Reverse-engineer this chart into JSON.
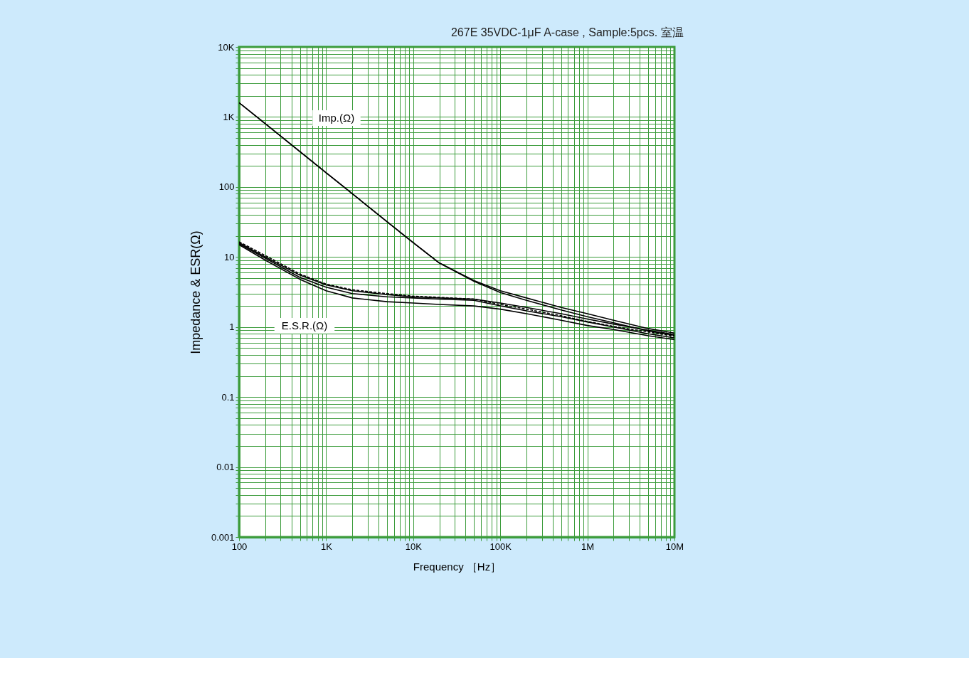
{
  "chart_data": {
    "type": "line",
    "title": "267E 35VDC-1μF A-case , Sample:5pcs. 室温",
    "xlabel": "Frequency ［Hz］",
    "ylabel": "Impedance  &  ESR(Ω)",
    "log": "xy",
    "grid": true,
    "legend": false,
    "marker": "none",
    "x": [
      100,
      200,
      500,
      1000,
      2000,
      5000,
      10000,
      20000,
      50000,
      100000,
      200000,
      500000,
      1000000,
      2000000,
      5000000,
      10000000
    ],
    "series": [
      {
        "color": "#000000",
        "line_style": "solid",
        "values": [
          1600,
          800,
          320,
          160,
          80,
          32,
          16,
          8.2,
          4.6,
          3.3,
          2.6,
          1.9,
          1.55,
          1.25,
          0.95,
          0.82
        ]
      },
      {
        "color": "#000000",
        "line_style": "solid",
        "values": [
          1600,
          800,
          320,
          160,
          80,
          32,
          16,
          8.2,
          4.5,
          3.1,
          2.4,
          1.75,
          1.4,
          1.15,
          0.88,
          0.76
        ]
      },
      {
        "color": "#000000",
        "line_style": "solid",
        "values": [
          16,
          10,
          5.5,
          4.0,
          3.3,
          2.9,
          2.7,
          2.6,
          2.5,
          2.2,
          1.9,
          1.55,
          1.3,
          1.1,
          0.9,
          0.78
        ]
      },
      {
        "color": "#000000",
        "line_style": "dashed",
        "values": [
          16.5,
          10.5,
          5.7,
          4.1,
          3.4,
          3.0,
          2.75,
          2.65,
          2.5,
          2.1,
          1.8,
          1.45,
          1.2,
          1.02,
          0.85,
          0.74
        ]
      },
      {
        "color": "#000000",
        "line_style": "solid",
        "values": [
          15.5,
          9.6,
          5.1,
          3.7,
          3.0,
          2.7,
          2.6,
          2.5,
          2.4,
          2.0,
          1.7,
          1.4,
          1.18,
          1.0,
          0.8,
          0.7
        ]
      },
      {
        "color": "#000000",
        "line_style": "solid",
        "values": [
          15,
          9,
          4.8,
          3.3,
          2.6,
          2.3,
          2.2,
          2.1,
          2.0,
          1.8,
          1.55,
          1.25,
          1.05,
          0.92,
          0.75,
          0.66
        ]
      }
    ],
    "annotations": [
      "Imp.(Ω)",
      "E.S.R.(Ω)"
    ],
    "xlim": [
      100,
      10000000
    ],
    "ylim": [
      0.001,
      10000
    ],
    "xticks": [
      {
        "value": 100,
        "label": "100"
      },
      {
        "value": 200,
        "label": null
      },
      {
        "value": 300,
        "label": null
      },
      {
        "value": 400,
        "label": null
      },
      {
        "value": 500,
        "label": null
      },
      {
        "value": 600,
        "label": null
      },
      {
        "value": 700,
        "label": null
      },
      {
        "value": 800,
        "label": null
      },
      {
        "value": 900,
        "label": null
      },
      {
        "value": 1000,
        "label": "1K"
      },
      {
        "value": 2000,
        "label": null
      },
      {
        "value": 3000,
        "label": null
      },
      {
        "value": 4000,
        "label": null
      },
      {
        "value": 5000,
        "label": null
      },
      {
        "value": 6000,
        "label": null
      },
      {
        "value": 7000,
        "label": null
      },
      {
        "value": 8000,
        "label": null
      },
      {
        "value": 9000,
        "label": null
      },
      {
        "value": 10000,
        "label": "10K"
      },
      {
        "value": 20000,
        "label": null
      },
      {
        "value": 30000,
        "label": null
      },
      {
        "value": 40000,
        "label": null
      },
      {
        "value": 50000,
        "label": null
      },
      {
        "value": 60000,
        "label": null
      },
      {
        "value": 70000,
        "label": null
      },
      {
        "value": 80000,
        "label": null
      },
      {
        "value": 90000,
        "label": null
      },
      {
        "value": 100000,
        "label": "100K"
      },
      {
        "value": 200000,
        "label": null
      },
      {
        "value": 300000,
        "label": null
      },
      {
        "value": 400000,
        "label": null
      },
      {
        "value": 500000,
        "label": null
      },
      {
        "value": 600000,
        "label": null
      },
      {
        "value": 700000,
        "label": null
      },
      {
        "value": 800000,
        "label": null
      },
      {
        "value": 900000,
        "label": null
      },
      {
        "value": 1000000,
        "label": "1M"
      },
      {
        "value": 2000000,
        "label": null
      },
      {
        "value": 3000000,
        "label": null
      },
      {
        "value": 4000000,
        "label": null
      },
      {
        "value": 5000000,
        "label": null
      },
      {
        "value": 6000000,
        "label": null
      },
      {
        "value": 7000000,
        "label": null
      },
      {
        "value": 8000000,
        "label": null
      },
      {
        "value": 9000000,
        "label": null
      },
      {
        "value": 10000000,
        "label": "10M"
      }
    ],
    "yticks": [
      {
        "value": 0.001,
        "label": "0.001"
      },
      {
        "value": 0.002,
        "label": null
      },
      {
        "value": 0.003,
        "label": null
      },
      {
        "value": 0.004,
        "label": null
      },
      {
        "value": 0.005,
        "label": null
      },
      {
        "value": 0.006,
        "label": null
      },
      {
        "value": 0.007,
        "label": null
      },
      {
        "value": 0.008,
        "label": null
      },
      {
        "value": 0.009,
        "label": null
      },
      {
        "value": 0.01,
        "label": "0.01"
      },
      {
        "value": 0.02,
        "label": null
      },
      {
        "value": 0.03,
        "label": null
      },
      {
        "value": 0.04,
        "label": null
      },
      {
        "value": 0.05,
        "label": null
      },
      {
        "value": 0.06,
        "label": null
      },
      {
        "value": 0.07,
        "label": null
      },
      {
        "value": 0.08,
        "label": null
      },
      {
        "value": 0.09,
        "label": null
      },
      {
        "value": 0.1,
        "label": "0.1"
      },
      {
        "value": 0.2,
        "label": null
      },
      {
        "value": 0.3,
        "label": null
      },
      {
        "value": 0.4,
        "label": null
      },
      {
        "value": 0.5,
        "label": null
      },
      {
        "value": 0.6,
        "label": null
      },
      {
        "value": 0.7,
        "label": null
      },
      {
        "value": 0.8,
        "label": null
      },
      {
        "value": 0.9,
        "label": null
      },
      {
        "value": 1,
        "label": "1"
      },
      {
        "value": 2,
        "label": null
      },
      {
        "value": 3,
        "label": null
      },
      {
        "value": 4,
        "label": null
      },
      {
        "value": 5,
        "label": null
      },
      {
        "value": 6,
        "label": null
      },
      {
        "value": 7,
        "label": null
      },
      {
        "value": 8,
        "label": null
      },
      {
        "value": 9,
        "label": null
      },
      {
        "value": 10,
        "label": "10"
      },
      {
        "value": 20,
        "label": null
      },
      {
        "value": 30,
        "label": null
      },
      {
        "value": 40,
        "label": null
      },
      {
        "value": 50,
        "label": null
      },
      {
        "value": 60,
        "label": null
      },
      {
        "value": 70,
        "label": null
      },
      {
        "value": 80,
        "label": null
      },
      {
        "value": 90,
        "label": null
      },
      {
        "value": 100,
        "label": "100"
      },
      {
        "value": 200,
        "label": null
      },
      {
        "value": 300,
        "label": null
      },
      {
        "value": 400,
        "label": null
      },
      {
        "value": 500,
        "label": null
      },
      {
        "value": 600,
        "label": null
      },
      {
        "value": 700,
        "label": null
      },
      {
        "value": 800,
        "label": null
      },
      {
        "value": 900,
        "label": null
      },
      {
        "value": 1000,
        "label": "1K"
      },
      {
        "value": 2000,
        "label": null
      },
      {
        "value": 3000,
        "label": null
      },
      {
        "value": 4000,
        "label": null
      },
      {
        "value": 5000,
        "label": null
      },
      {
        "value": 6000,
        "label": null
      },
      {
        "value": 7000,
        "label": null
      },
      {
        "value": 8000,
        "label": null
      },
      {
        "value": 9000,
        "label": null
      },
      {
        "value": 10000,
        "label": "10K"
      }
    ]
  }
}
